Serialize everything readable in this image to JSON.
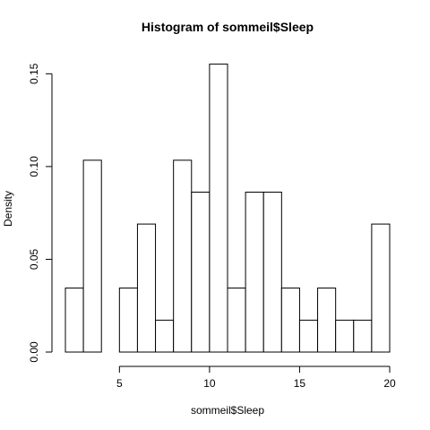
{
  "chart_data": {
    "type": "bar",
    "title": "Histogram of sommeil$Sleep",
    "xlabel": "sommeil$Sleep",
    "ylabel": "Density",
    "xlim": [
      2,
      20
    ],
    "ylim": [
      0,
      0.155
    ],
    "bin_width": 1,
    "bins": [
      {
        "x0": 2,
        "x1": 3,
        "density": 0.0345
      },
      {
        "x0": 3,
        "x1": 4,
        "density": 0.1034
      },
      {
        "x0": 4,
        "x1": 5,
        "density": 0.0
      },
      {
        "x0": 5,
        "x1": 6,
        "density": 0.0345
      },
      {
        "x0": 6,
        "x1": 7,
        "density": 0.069
      },
      {
        "x0": 7,
        "x1": 8,
        "density": 0.0172
      },
      {
        "x0": 8,
        "x1": 9,
        "density": 0.1034
      },
      {
        "x0": 9,
        "x1": 10,
        "density": 0.0862
      },
      {
        "x0": 10,
        "x1": 11,
        "density": 0.1552
      },
      {
        "x0": 11,
        "x1": 12,
        "density": 0.0345
      },
      {
        "x0": 12,
        "x1": 13,
        "density": 0.0862
      },
      {
        "x0": 13,
        "x1": 14,
        "density": 0.0862
      },
      {
        "x0": 14,
        "x1": 15,
        "density": 0.0345
      },
      {
        "x0": 15,
        "x1": 16,
        "density": 0.0172
      },
      {
        "x0": 16,
        "x1": 17,
        "density": 0.0345
      },
      {
        "x0": 17,
        "x1": 18,
        "density": 0.0172
      },
      {
        "x0": 18,
        "x1": 19,
        "density": 0.0172
      },
      {
        "x0": 19,
        "x1": 20,
        "density": 0.069
      }
    ],
    "x_ticks": [
      5,
      10,
      15,
      20
    ],
    "x_tick_labels": [
      "5",
      "10",
      "15",
      "20"
    ],
    "y_ticks": [
      0,
      0.05,
      0.1,
      0.15
    ],
    "y_tick_labels": [
      "0.00",
      "0.05",
      "0.10",
      "0.15"
    ],
    "grid": false,
    "legend": "none"
  }
}
